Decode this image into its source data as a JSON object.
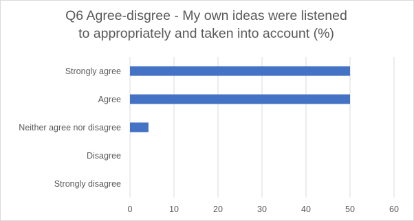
{
  "chart_data": {
    "type": "bar",
    "orientation": "horizontal",
    "title_lines": [
      "Q6 Agree-disgree - My own ideas were listened",
      "to appropriately and taken into account (%)"
    ],
    "categories": [
      "Strongly agree",
      "Agree",
      "Neither agree nor disagree",
      "Disagree",
      "Strongly disagree"
    ],
    "values": [
      50,
      50,
      4.2,
      0,
      0
    ],
    "xlim": [
      0,
      60
    ],
    "x_ticks": [
      0,
      10,
      20,
      30,
      40,
      50,
      60
    ],
    "xlabel": "",
    "ylabel": "",
    "grid": "vertical",
    "legend": "none",
    "bar_color": "#4472c4",
    "grid_color": "#d9d9d9",
    "text_color": "#595959"
  }
}
